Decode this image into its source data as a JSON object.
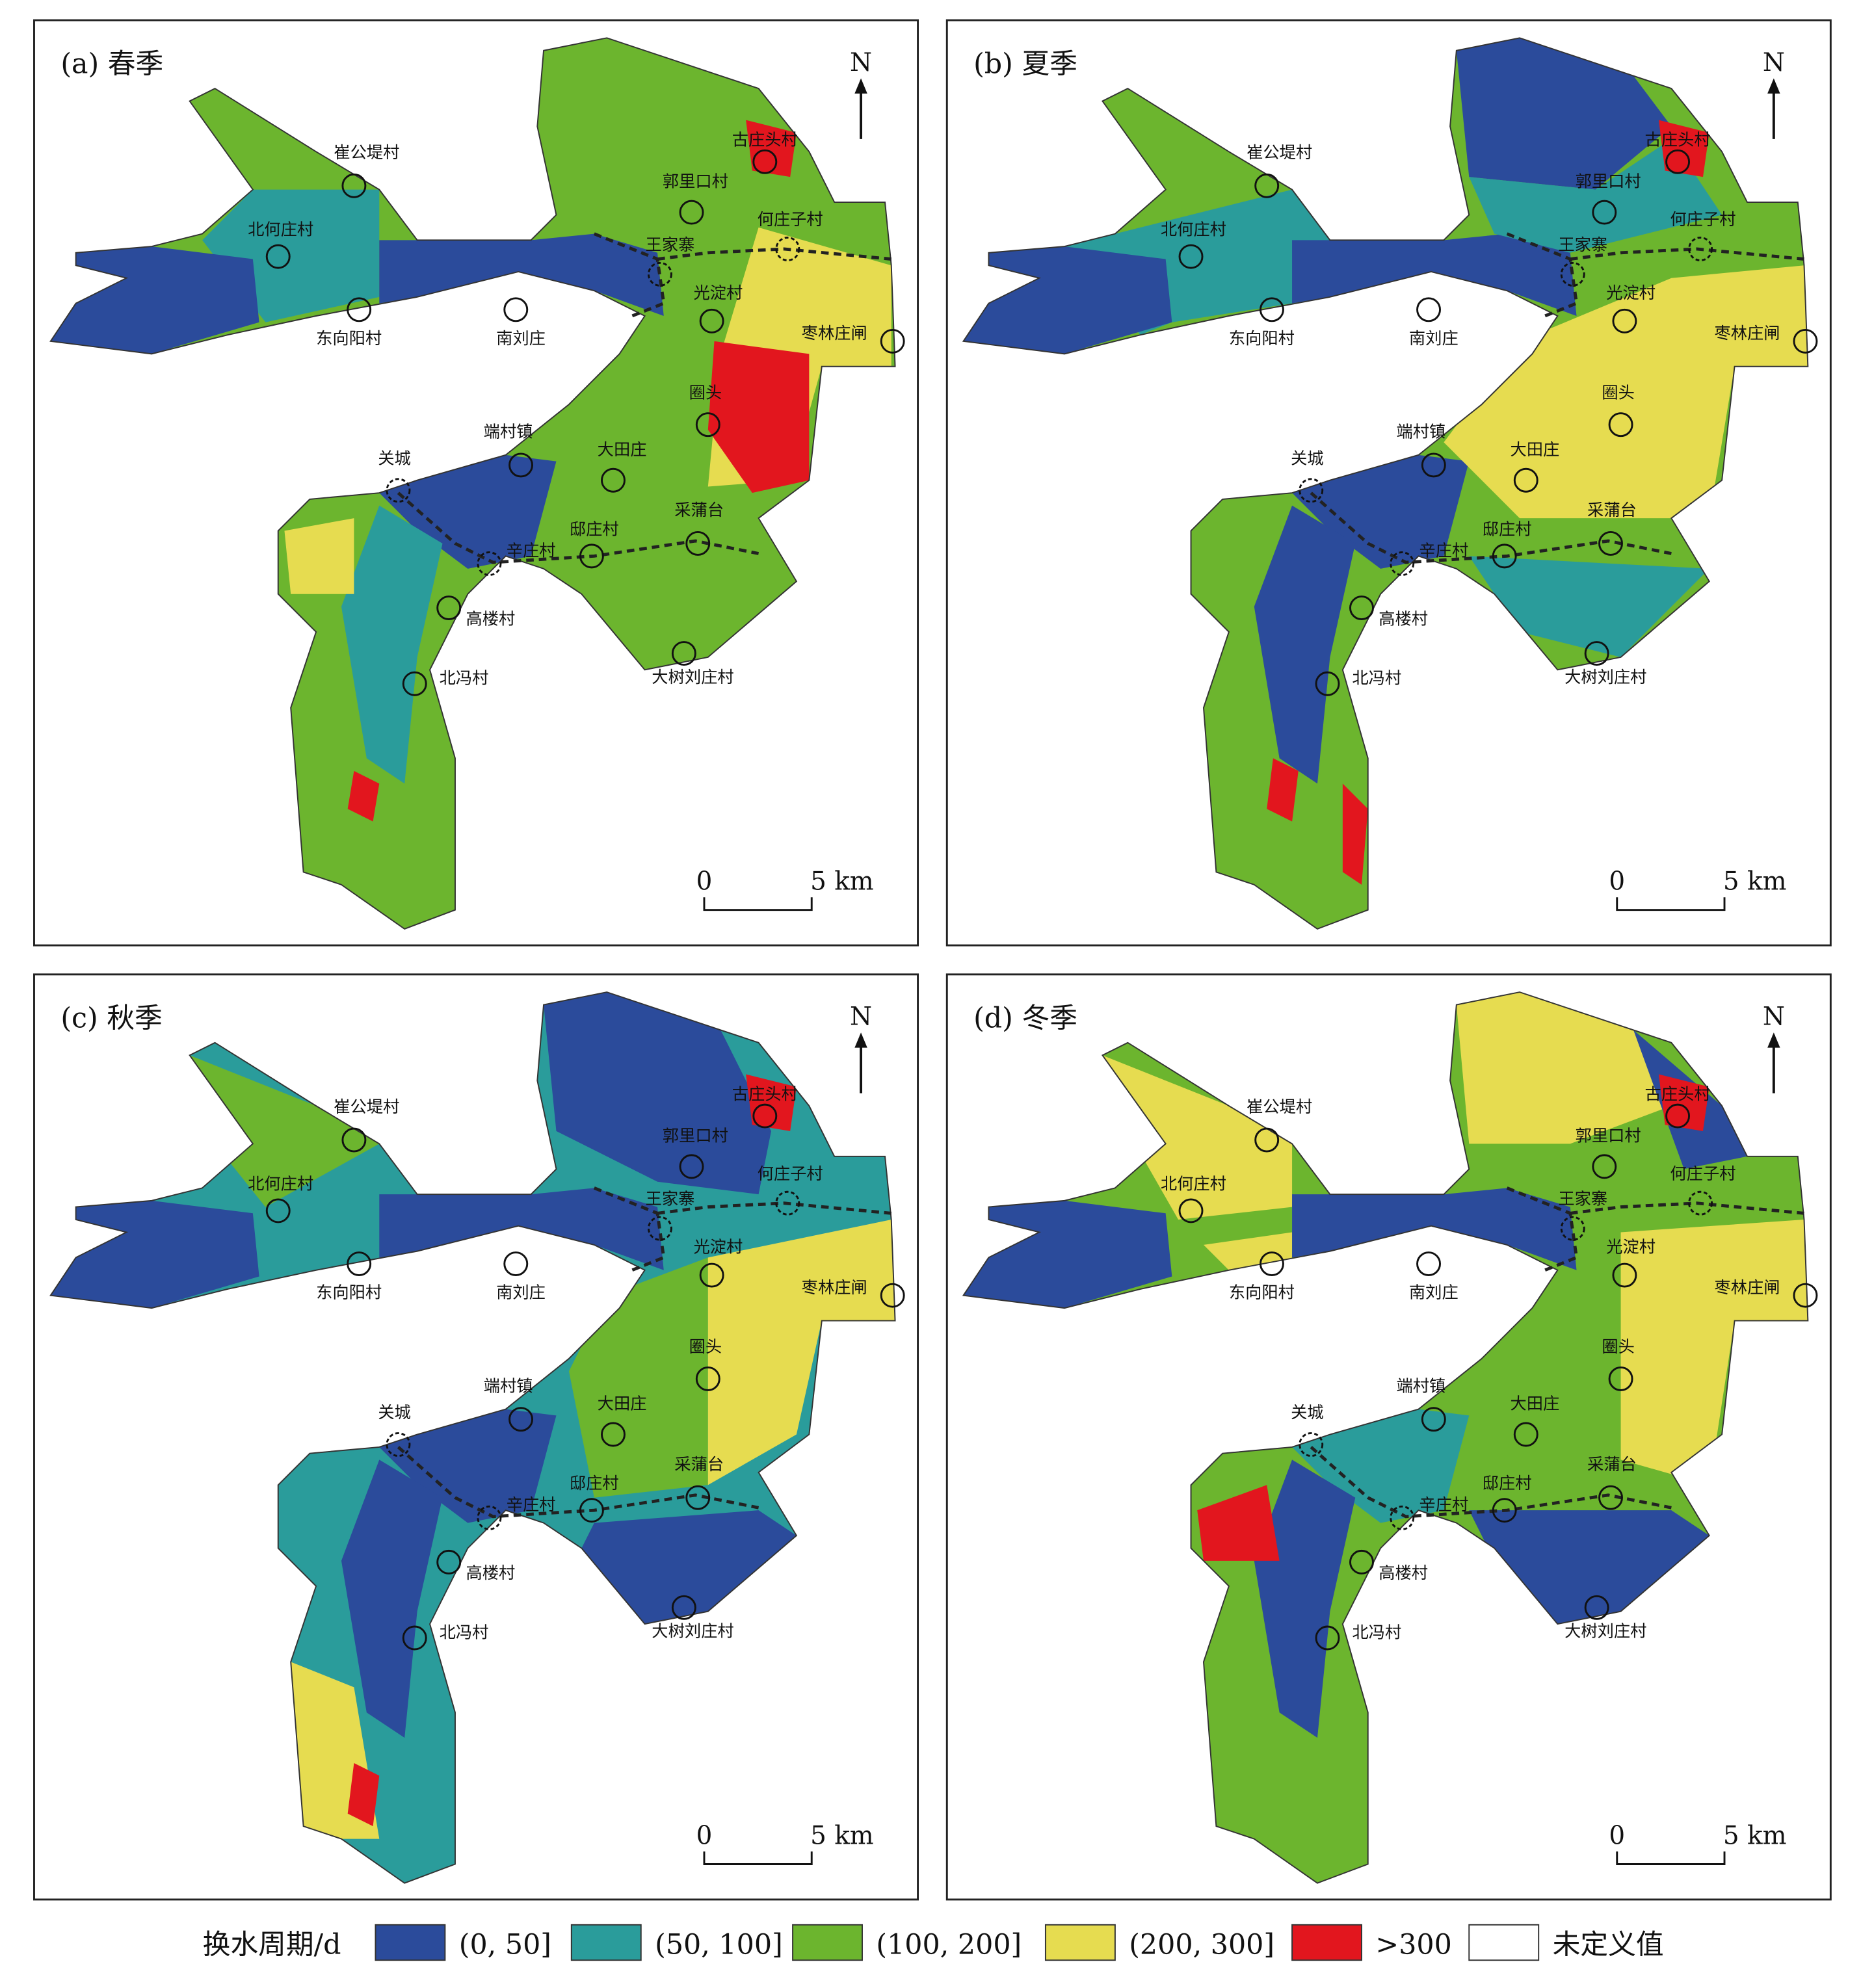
{
  "panels": [
    {
      "title": "(a) 春季"
    },
    {
      "title": "(b) 夏季"
    },
    {
      "title": "(c) 秋季"
    },
    {
      "title": "(d) 冬季"
    }
  ],
  "places": [
    "崔公堤村",
    "北何庄村",
    "东向阳村",
    "南刘庄",
    "郭里口村",
    "古庄头村",
    "何庄子村",
    "王家寨",
    "光淀村",
    "枣林庄闸",
    "圈头",
    "端村镇",
    "大田庄",
    "关城",
    "采蒲台",
    "邸庄村",
    "辛庄村",
    "高楼村",
    "北冯村",
    "大树刘庄村"
  ],
  "north": "N",
  "scale_bar": {
    "start": "0",
    "end": "5 km"
  },
  "legend": {
    "title": "换水周期/d",
    "items": [
      {
        "label": "(0, 50]",
        "color": "#2b4b9b"
      },
      {
        "label": "(50, 100]",
        "color": "#2a9c9b"
      },
      {
        "label": "(100, 200]",
        "color": "#6cb52e"
      },
      {
        "label": "(200, 300]",
        "color": "#e6dc50"
      },
      {
        "label": ">300",
        "color": "#e2161e"
      },
      {
        "label": "未定义值",
        "color": "#ffffff"
      }
    ]
  }
}
